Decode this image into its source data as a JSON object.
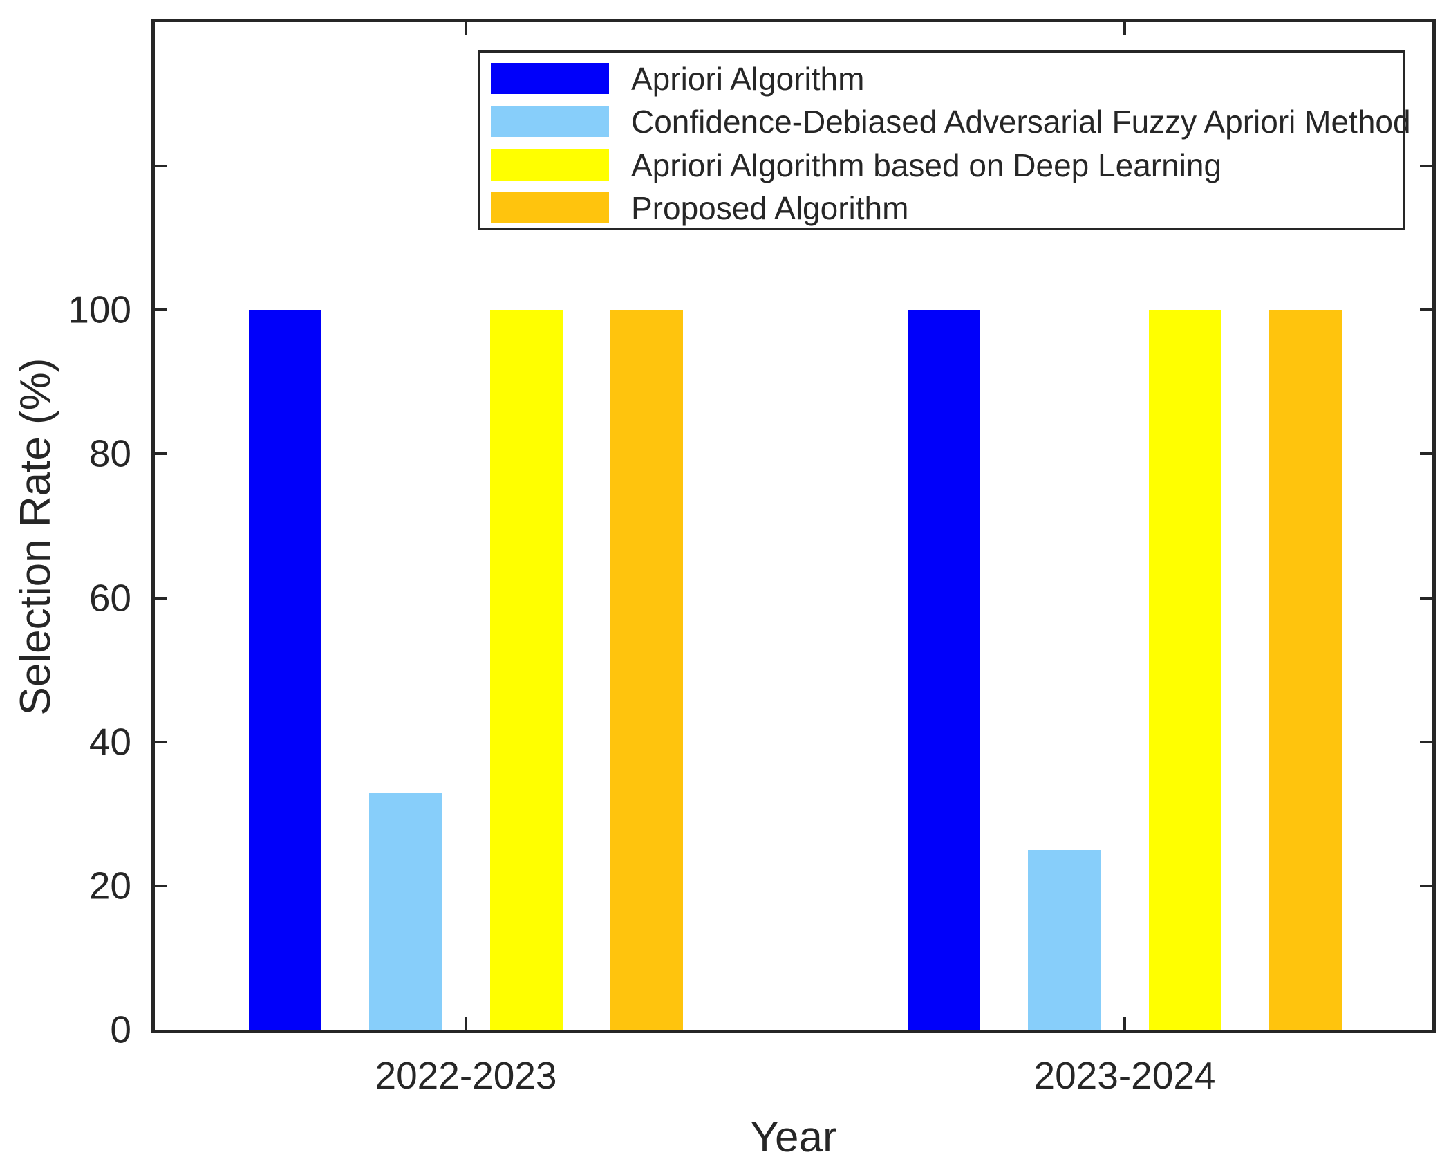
{
  "figure": {
    "background": "#ffffff",
    "frame_color": "#262626",
    "text_color": "#262626"
  },
  "chart_data": {
    "type": "bar",
    "title": "",
    "xlabel": "Year",
    "ylabel": "Selection Rate (%)",
    "categories": [
      "2022-2023",
      "2023-2024"
    ],
    "series": [
      {
        "name": "Apriori Algorithm",
        "color": "#0000fa",
        "values": [
          100,
          100
        ]
      },
      {
        "name": "Confidence-Debiased Adversarial Fuzzy Apriori Method",
        "color": "#87cefa",
        "values": [
          33,
          25
        ]
      },
      {
        "name": "Apriori Algorithm based on Deep Learning",
        "color": "#ffff00",
        "values": [
          100,
          100
        ]
      },
      {
        "name": "Proposed Algorithm",
        "color": "#ffc40d",
        "values": [
          100,
          100
        ]
      }
    ],
    "ylim": [
      0,
      140
    ],
    "yticks": [
      0,
      20,
      40,
      60,
      80,
      100,
      120,
      140
    ],
    "ytick_labels": [
      "0",
      "20",
      "40",
      "60",
      "80",
      "100",
      "",
      ""
    ],
    "grid": false,
    "legend_position": "top-inside",
    "legend_border": true
  }
}
